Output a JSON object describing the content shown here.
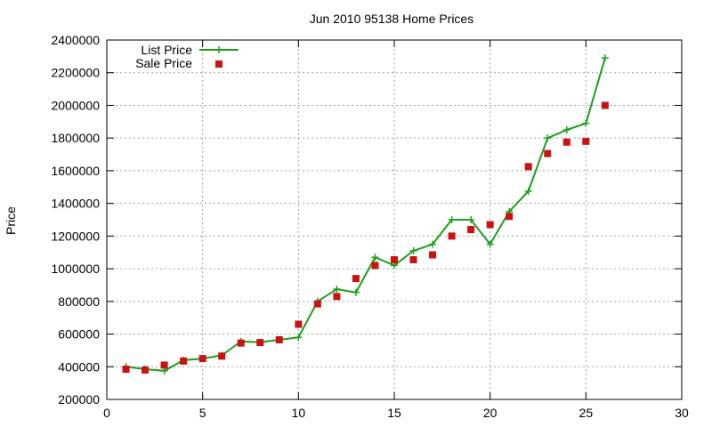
{
  "chart_data": {
    "type": "line",
    "title": "Jun 2010 95138 Home Prices",
    "xlabel": "",
    "ylabel": "Price",
    "xlim": [
      0,
      30
    ],
    "ylim": [
      200000,
      2400000
    ],
    "x_ticks": [
      0,
      5,
      10,
      15,
      20,
      25,
      30
    ],
    "y_ticks": [
      200000,
      400000,
      600000,
      800000,
      1000000,
      1200000,
      1400000,
      1600000,
      1800000,
      2000000,
      2200000,
      2400000
    ],
    "grid": true,
    "legend_position": "top-left",
    "series": [
      {
        "name": "List Price",
        "style": "line+plus",
        "color": "#1aa01a",
        "x": [
          1,
          2,
          3,
          4,
          5,
          6,
          7,
          8,
          9,
          10,
          11,
          12,
          13,
          14,
          15,
          16,
          17,
          18,
          19,
          20,
          21,
          22,
          23,
          24,
          25,
          26
        ],
        "values": [
          400000,
          385000,
          375000,
          440000,
          450000,
          470000,
          555000,
          550000,
          565000,
          580000,
          800000,
          875000,
          855000,
          1070000,
          1020000,
          1110000,
          1150000,
          1300000,
          1300000,
          1150000,
          1350000,
          1475000,
          1800000,
          1850000,
          1890000,
          2290000
        ]
      },
      {
        "name": "Sale Price",
        "style": "square",
        "color": "#cc1111",
        "x": [
          1,
          2,
          3,
          4,
          5,
          6,
          7,
          8,
          9,
          10,
          11,
          12,
          13,
          14,
          15,
          16,
          17,
          18,
          19,
          20,
          21,
          22,
          23,
          24,
          25,
          26
        ],
        "values": [
          385000,
          380000,
          410000,
          435000,
          450000,
          465000,
          545000,
          548000,
          565000,
          660000,
          785000,
          830000,
          940000,
          1020000,
          1055000,
          1055000,
          1085000,
          1200000,
          1240000,
          1270000,
          1320000,
          1625000,
          1705000,
          1775000,
          1780000,
          2000000
        ]
      }
    ]
  }
}
